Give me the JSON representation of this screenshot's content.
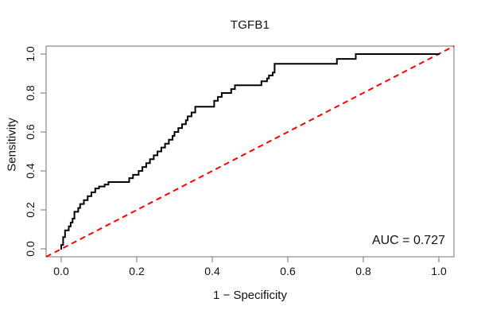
{
  "title": "TGFB1",
  "annotations": {
    "auc_text": "AUC = 0.727"
  },
  "axes": {
    "x": {
      "label": "1 − Specificity",
      "ticks": [
        "0.0",
        "0.2",
        "0.4",
        "0.6",
        "0.8",
        "1.0"
      ]
    },
    "y": {
      "label": "Sensitivity",
      "ticks": [
        "0.0",
        "0.2",
        "0.4",
        "0.6",
        "0.8",
        "1.0"
      ]
    }
  },
  "colors": {
    "roc_curve": "#000000",
    "diagonal": "#ff0000",
    "axis": "#8a8a8a",
    "text": "#111111",
    "background": "#ffffff"
  },
  "chart_data": {
    "type": "line",
    "subtype": "roc_step_curve",
    "title": "TGFB1",
    "xlabel": "1 − Specificity",
    "ylabel": "Sensitivity",
    "xlim": [
      0,
      1
    ],
    "ylim": [
      0,
      1
    ],
    "xticks": [
      0.0,
      0.2,
      0.4,
      0.6,
      0.8,
      1.0
    ],
    "yticks": [
      0.0,
      0.2,
      0.4,
      0.6,
      0.8,
      1.0
    ],
    "grid": false,
    "legend_position": "none",
    "auc": 0.727,
    "series": [
      {
        "name": "ROC curve (TGFB1)",
        "type": "step-line",
        "color": "#000000",
        "line_width": 2,
        "points": [
          [
            0.0,
            0.0
          ],
          [
            0.0,
            0.02
          ],
          [
            0.005,
            0.02
          ],
          [
            0.005,
            0.06
          ],
          [
            0.01,
            0.06
          ],
          [
            0.01,
            0.095
          ],
          [
            0.02,
            0.095
          ],
          [
            0.02,
            0.115
          ],
          [
            0.025,
            0.115
          ],
          [
            0.025,
            0.135
          ],
          [
            0.03,
            0.135
          ],
          [
            0.03,
            0.155
          ],
          [
            0.035,
            0.155
          ],
          [
            0.035,
            0.19
          ],
          [
            0.045,
            0.19
          ],
          [
            0.045,
            0.21
          ],
          [
            0.05,
            0.21
          ],
          [
            0.05,
            0.23
          ],
          [
            0.06,
            0.23
          ],
          [
            0.06,
            0.25
          ],
          [
            0.07,
            0.25
          ],
          [
            0.07,
            0.27
          ],
          [
            0.08,
            0.27
          ],
          [
            0.08,
            0.29
          ],
          [
            0.09,
            0.29
          ],
          [
            0.09,
            0.31
          ],
          [
            0.1,
            0.31
          ],
          [
            0.1,
            0.32
          ],
          [
            0.115,
            0.32
          ],
          [
            0.115,
            0.33
          ],
          [
            0.125,
            0.33
          ],
          [
            0.125,
            0.343
          ],
          [
            0.135,
            0.343
          ],
          [
            0.18,
            0.343
          ],
          [
            0.18,
            0.363
          ],
          [
            0.19,
            0.363
          ],
          [
            0.19,
            0.38
          ],
          [
            0.205,
            0.38
          ],
          [
            0.205,
            0.4
          ],
          [
            0.215,
            0.4
          ],
          [
            0.215,
            0.42
          ],
          [
            0.225,
            0.42
          ],
          [
            0.225,
            0.44
          ],
          [
            0.235,
            0.44
          ],
          [
            0.235,
            0.46
          ],
          [
            0.245,
            0.46
          ],
          [
            0.245,
            0.48
          ],
          [
            0.255,
            0.48
          ],
          [
            0.255,
            0.5
          ],
          [
            0.265,
            0.5
          ],
          [
            0.265,
            0.52
          ],
          [
            0.275,
            0.52
          ],
          [
            0.275,
            0.54
          ],
          [
            0.285,
            0.54
          ],
          [
            0.285,
            0.56
          ],
          [
            0.295,
            0.56
          ],
          [
            0.295,
            0.58
          ],
          [
            0.3,
            0.58
          ],
          [
            0.3,
            0.6
          ],
          [
            0.31,
            0.6
          ],
          [
            0.31,
            0.62
          ],
          [
            0.32,
            0.62
          ],
          [
            0.32,
            0.64
          ],
          [
            0.33,
            0.64
          ],
          [
            0.33,
            0.66
          ],
          [
            0.335,
            0.66
          ],
          [
            0.335,
            0.68
          ],
          [
            0.345,
            0.68
          ],
          [
            0.345,
            0.7
          ],
          [
            0.355,
            0.7
          ],
          [
            0.355,
            0.73
          ],
          [
            0.36,
            0.73
          ],
          [
            0.405,
            0.73
          ],
          [
            0.405,
            0.76
          ],
          [
            0.415,
            0.76
          ],
          [
            0.415,
            0.78
          ],
          [
            0.425,
            0.78
          ],
          [
            0.425,
            0.8
          ],
          [
            0.45,
            0.8
          ],
          [
            0.45,
            0.82
          ],
          [
            0.46,
            0.82
          ],
          [
            0.46,
            0.84
          ],
          [
            0.53,
            0.84
          ],
          [
            0.53,
            0.86
          ],
          [
            0.545,
            0.86
          ],
          [
            0.545,
            0.875
          ],
          [
            0.55,
            0.875
          ],
          [
            0.55,
            0.89
          ],
          [
            0.56,
            0.89
          ],
          [
            0.56,
            0.905
          ],
          [
            0.565,
            0.905
          ],
          [
            0.565,
            0.95
          ],
          [
            0.73,
            0.95
          ],
          [
            0.73,
            0.975
          ],
          [
            0.745,
            0.975
          ],
          [
            0.78,
            0.975
          ],
          [
            0.78,
            1.0
          ],
          [
            1.0,
            1.0
          ]
        ]
      },
      {
        "name": "Chance diagonal",
        "type": "line",
        "style": "dashed",
        "color": "#ff0000",
        "line_width": 2,
        "points": [
          [
            0,
            0
          ],
          [
            1,
            1
          ]
        ]
      }
    ]
  }
}
